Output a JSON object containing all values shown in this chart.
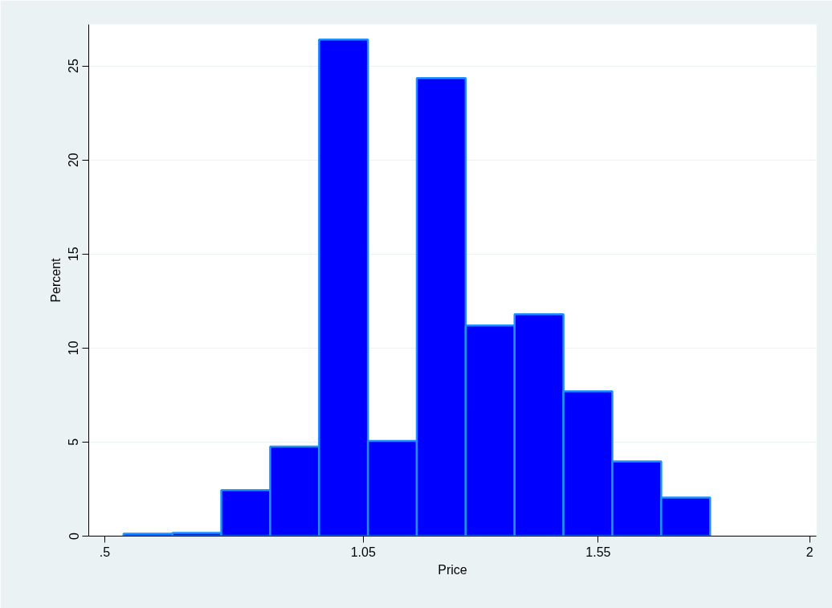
{
  "chart_data": {
    "type": "histogram",
    "xlabel": "Price",
    "ylabel": "Percent",
    "bins": [
      0.54,
      0.644,
      0.748,
      0.852,
      0.956,
      1.06,
      1.164,
      1.268,
      1.372,
      1.476,
      1.58,
      1.684,
      1.788
    ],
    "values": [
      0.13,
      0.17,
      2.44,
      4.76,
      26.4,
      5.06,
      24.35,
      11.2,
      11.8,
      7.7,
      3.97,
      2.05
    ],
    "color": "#0000ff",
    "xlim": [
      0.466,
      2.014
    ],
    "xticks": [
      {
        "value": 0.5,
        "label": ".5"
      },
      1.05,
      1.55,
      2
    ],
    "ylim": [
      0,
      27.2
    ],
    "yticks": [
      0,
      5,
      10,
      15,
      20,
      25
    ],
    "grid": "y"
  }
}
